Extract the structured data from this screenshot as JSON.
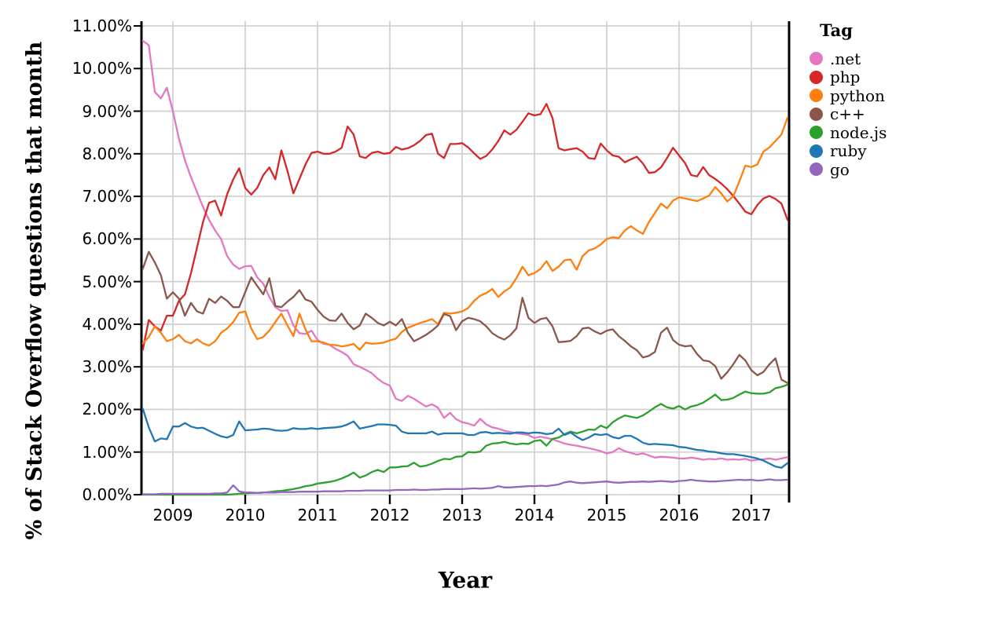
{
  "chart_data": {
    "type": "line",
    "title": "",
    "xlabel": "Year",
    "ylabel": "% of Stack Overflow questions that month",
    "legend_title": "Tag",
    "legend_position": "right",
    "grid": true,
    "background": "#ffffff",
    "gridline_color": "#d2d2d2",
    "spine_color": "#000000",
    "x_start": "2008-08",
    "x_end": "2017-07",
    "frequency": "monthly",
    "x_tick_labels": [
      "2009",
      "2010",
      "2011",
      "2012",
      "2013",
      "2014",
      "2015",
      "2016",
      "2017"
    ],
    "y_tick_labels": [
      "0.00%",
      "1.00%",
      "2.00%",
      "3.00%",
      "4.00%",
      "5.00%",
      "6.00%",
      "7.00%",
      "8.00%",
      "9.00%",
      "10.00%",
      "11.00%"
    ],
    "ylim": [
      0,
      11.1
    ],
    "series": [
      {
        "name": ".net",
        "color": "#e377c2",
        "values": [
          10.65,
          10.55,
          9.45,
          9.3,
          9.55,
          9.0,
          8.35,
          7.85,
          7.45,
          7.1,
          6.75,
          6.45,
          6.2,
          6.0,
          5.6,
          5.4,
          5.3,
          5.36,
          5.37,
          5.1,
          4.95,
          4.64,
          4.4,
          4.31,
          4.33,
          3.97,
          3.79,
          3.77,
          3.85,
          3.63,
          3.54,
          3.52,
          3.42,
          3.35,
          3.26,
          3.06,
          3.0,
          2.93,
          2.85,
          2.72,
          2.62,
          2.56,
          2.25,
          2.2,
          2.32,
          2.25,
          2.16,
          2.07,
          2.12,
          2.04,
          1.8,
          1.92,
          1.77,
          1.7,
          1.67,
          1.62,
          1.78,
          1.65,
          1.58,
          1.55,
          1.5,
          1.47,
          1.44,
          1.42,
          1.4,
          1.33,
          1.36,
          1.33,
          1.3,
          1.25,
          1.2,
          1.17,
          1.15,
          1.12,
          1.09,
          1.06,
          1.02,
          0.97,
          1.0,
          1.09,
          1.02,
          0.98,
          0.94,
          0.97,
          0.92,
          0.87,
          0.89,
          0.88,
          0.87,
          0.85,
          0.85,
          0.87,
          0.85,
          0.82,
          0.84,
          0.83,
          0.85,
          0.82,
          0.83,
          0.82,
          0.84,
          0.8,
          0.82,
          0.83,
          0.85,
          0.82,
          0.85,
          0.88
        ]
      },
      {
        "name": "php",
        "color": "#d62728",
        "values": [
          3.4,
          4.1,
          3.95,
          3.85,
          4.2,
          4.2,
          4.55,
          4.7,
          5.2,
          5.8,
          6.4,
          6.85,
          6.9,
          6.55,
          7.05,
          7.4,
          7.66,
          7.2,
          7.04,
          7.2,
          7.5,
          7.68,
          7.4,
          8.08,
          7.6,
          7.07,
          7.41,
          7.75,
          8.02,
          8.05,
          8.0,
          8.0,
          8.05,
          8.14,
          8.64,
          8.45,
          7.94,
          7.9,
          8.02,
          8.05,
          8.0,
          8.02,
          8.16,
          8.1,
          8.13,
          8.2,
          8.3,
          8.44,
          8.47,
          8.0,
          7.9,
          8.23,
          8.23,
          8.25,
          8.15,
          8.01,
          7.88,
          7.95,
          8.1,
          8.3,
          8.55,
          8.45,
          8.56,
          8.75,
          8.95,
          8.9,
          8.93,
          9.17,
          8.84,
          8.13,
          8.08,
          8.11,
          8.13,
          8.05,
          7.9,
          7.88,
          8.24,
          8.08,
          7.96,
          7.93,
          7.8,
          7.87,
          7.93,
          7.77,
          7.55,
          7.57,
          7.68,
          7.9,
          8.14,
          7.96,
          7.78,
          7.5,
          7.47,
          7.69,
          7.5,
          7.41,
          7.3,
          7.17,
          7.01,
          6.83,
          6.64,
          6.58,
          6.8,
          6.95,
          7.01,
          6.94,
          6.83,
          6.45
        ]
      },
      {
        "name": "python",
        "color": "#ff7f0e",
        "values": [
          3.55,
          3.7,
          3.95,
          3.8,
          3.6,
          3.65,
          3.75,
          3.6,
          3.55,
          3.65,
          3.55,
          3.5,
          3.6,
          3.8,
          3.9,
          4.05,
          4.27,
          4.3,
          3.9,
          3.65,
          3.7,
          3.85,
          4.05,
          4.25,
          3.97,
          3.72,
          4.25,
          3.88,
          3.6,
          3.6,
          3.57,
          3.52,
          3.51,
          3.48,
          3.5,
          3.54,
          3.4,
          3.57,
          3.54,
          3.55,
          3.57,
          3.62,
          3.66,
          3.82,
          3.92,
          3.97,
          4.03,
          4.07,
          4.12,
          4.0,
          4.27,
          4.25,
          4.27,
          4.3,
          4.38,
          4.55,
          4.67,
          4.73,
          4.83,
          4.64,
          4.77,
          4.86,
          5.08,
          5.35,
          5.15,
          5.2,
          5.3,
          5.48,
          5.25,
          5.35,
          5.5,
          5.52,
          5.28,
          5.6,
          5.73,
          5.78,
          5.87,
          6.0,
          6.04,
          6.02,
          6.2,
          6.3,
          6.2,
          6.12,
          6.4,
          6.61,
          6.83,
          6.72,
          6.9,
          6.98,
          6.95,
          6.92,
          6.89,
          6.95,
          7.02,
          7.22,
          7.07,
          6.88,
          7.0,
          7.35,
          7.72,
          7.69,
          7.75,
          8.05,
          8.15,
          8.3,
          8.45,
          8.85
        ]
      },
      {
        "name": "c++",
        "color": "#8c564b",
        "values": [
          5.3,
          5.7,
          5.45,
          5.15,
          4.6,
          4.75,
          4.6,
          4.2,
          4.5,
          4.3,
          4.25,
          4.6,
          4.5,
          4.65,
          4.55,
          4.4,
          4.4,
          4.75,
          5.1,
          4.9,
          4.7,
          5.08,
          4.43,
          4.4,
          4.53,
          4.64,
          4.8,
          4.58,
          4.53,
          4.34,
          4.18,
          4.09,
          4.08,
          4.25,
          4.03,
          3.88,
          3.97,
          4.25,
          4.15,
          4.03,
          3.97,
          4.06,
          3.97,
          4.12,
          3.8,
          3.6,
          3.67,
          3.75,
          3.85,
          3.97,
          4.24,
          4.19,
          3.86,
          4.07,
          4.15,
          4.12,
          4.07,
          3.95,
          3.79,
          3.7,
          3.64,
          3.74,
          3.9,
          4.62,
          4.15,
          4.03,
          4.12,
          4.15,
          3.95,
          3.58,
          3.59,
          3.61,
          3.72,
          3.9,
          3.92,
          3.83,
          3.77,
          3.85,
          3.88,
          3.72,
          3.61,
          3.48,
          3.39,
          3.22,
          3.26,
          3.35,
          3.8,
          3.92,
          3.63,
          3.52,
          3.48,
          3.5,
          3.3,
          3.15,
          3.13,
          3.02,
          2.72,
          2.87,
          3.06,
          3.28,
          3.15,
          2.92,
          2.8,
          2.88,
          3.06,
          3.2,
          2.7,
          2.62
        ]
      },
      {
        "name": "node.js",
        "color": "#2ca02c",
        "values": [
          0.0,
          0.0,
          0.0,
          0.0,
          0.0,
          0.0,
          0.0,
          0.0,
          0.0,
          0.0,
          0.0,
          0.0,
          0.0,
          0.0,
          0.0,
          0.01,
          0.02,
          0.03,
          0.04,
          0.04,
          0.05,
          0.06,
          0.08,
          0.09,
          0.11,
          0.13,
          0.16,
          0.2,
          0.22,
          0.26,
          0.28,
          0.3,
          0.33,
          0.38,
          0.44,
          0.52,
          0.4,
          0.45,
          0.53,
          0.58,
          0.53,
          0.64,
          0.64,
          0.66,
          0.67,
          0.75,
          0.66,
          0.68,
          0.73,
          0.79,
          0.84,
          0.83,
          0.89,
          0.9,
          1.0,
          0.99,
          1.01,
          1.15,
          1.2,
          1.21,
          1.24,
          1.2,
          1.18,
          1.2,
          1.19,
          1.26,
          1.28,
          1.15,
          1.31,
          1.34,
          1.42,
          1.48,
          1.44,
          1.48,
          1.53,
          1.52,
          1.62,
          1.56,
          1.7,
          1.79,
          1.86,
          1.83,
          1.8,
          1.86,
          1.95,
          2.05,
          2.13,
          2.05,
          2.02,
          2.08,
          2.0,
          2.07,
          2.1,
          2.16,
          2.25,
          2.35,
          2.22,
          2.23,
          2.27,
          2.35,
          2.42,
          2.38,
          2.37,
          2.37,
          2.4,
          2.5,
          2.53,
          2.58
        ]
      },
      {
        "name": "ruby",
        "color": "#1f77b4",
        "values": [
          2.02,
          1.58,
          1.25,
          1.32,
          1.3,
          1.6,
          1.6,
          1.68,
          1.6,
          1.56,
          1.57,
          1.5,
          1.43,
          1.37,
          1.34,
          1.4,
          1.72,
          1.51,
          1.52,
          1.53,
          1.55,
          1.54,
          1.51,
          1.5,
          1.51,
          1.56,
          1.54,
          1.54,
          1.56,
          1.54,
          1.56,
          1.57,
          1.58,
          1.6,
          1.65,
          1.72,
          1.55,
          1.58,
          1.61,
          1.65,
          1.65,
          1.64,
          1.62,
          1.48,
          1.44,
          1.44,
          1.44,
          1.44,
          1.48,
          1.41,
          1.44,
          1.44,
          1.44,
          1.44,
          1.4,
          1.4,
          1.46,
          1.47,
          1.44,
          1.45,
          1.44,
          1.43,
          1.46,
          1.46,
          1.44,
          1.46,
          1.45,
          1.42,
          1.44,
          1.55,
          1.4,
          1.46,
          1.36,
          1.28,
          1.34,
          1.42,
          1.4,
          1.42,
          1.35,
          1.32,
          1.38,
          1.38,
          1.31,
          1.22,
          1.18,
          1.19,
          1.18,
          1.17,
          1.16,
          1.12,
          1.11,
          1.08,
          1.05,
          1.04,
          1.01,
          1.0,
          0.97,
          0.95,
          0.95,
          0.93,
          0.91,
          0.88,
          0.85,
          0.8,
          0.73,
          0.66,
          0.63,
          0.74
        ]
      },
      {
        "name": "go",
        "color": "#9467bd",
        "values": [
          0.01,
          0.01,
          0.01,
          0.02,
          0.02,
          0.02,
          0.02,
          0.02,
          0.02,
          0.02,
          0.02,
          0.02,
          0.03,
          0.03,
          0.05,
          0.22,
          0.08,
          0.05,
          0.05,
          0.04,
          0.05,
          0.05,
          0.05,
          0.06,
          0.06,
          0.06,
          0.07,
          0.07,
          0.07,
          0.07,
          0.08,
          0.08,
          0.08,
          0.08,
          0.09,
          0.09,
          0.09,
          0.1,
          0.1,
          0.1,
          0.1,
          0.1,
          0.11,
          0.11,
          0.11,
          0.12,
          0.11,
          0.11,
          0.12,
          0.12,
          0.13,
          0.13,
          0.13,
          0.13,
          0.14,
          0.15,
          0.14,
          0.15,
          0.16,
          0.2,
          0.17,
          0.17,
          0.18,
          0.19,
          0.2,
          0.2,
          0.21,
          0.2,
          0.22,
          0.24,
          0.29,
          0.31,
          0.28,
          0.27,
          0.28,
          0.29,
          0.3,
          0.31,
          0.29,
          0.28,
          0.29,
          0.3,
          0.3,
          0.31,
          0.3,
          0.31,
          0.32,
          0.31,
          0.3,
          0.32,
          0.33,
          0.35,
          0.33,
          0.32,
          0.31,
          0.31,
          0.32,
          0.33,
          0.34,
          0.35,
          0.34,
          0.35,
          0.33,
          0.34,
          0.36,
          0.34,
          0.34,
          0.35
        ]
      }
    ]
  }
}
